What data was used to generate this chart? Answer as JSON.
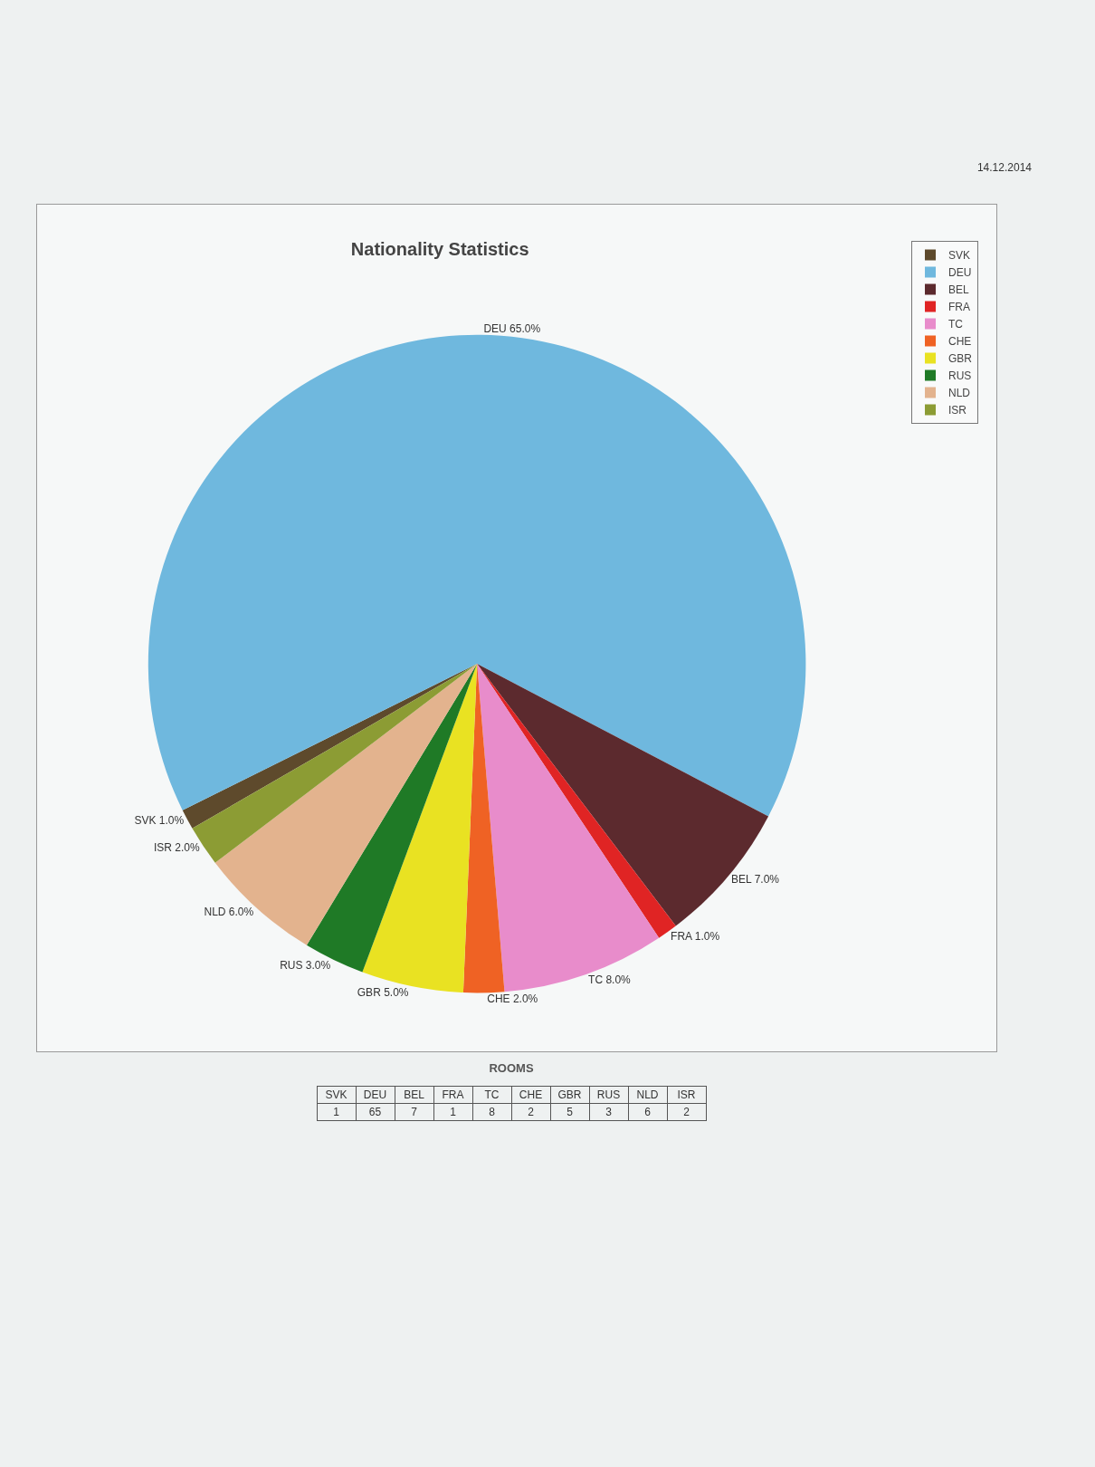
{
  "chart_data": [
    {
      "type": "pie",
      "title": "Nationality Statistics",
      "categories": [
        "SVK",
        "DEU",
        "BEL",
        "FRA",
        "TC",
        "CHE",
        "GBR",
        "RUS",
        "NLD",
        "ISR"
      ],
      "values": [
        1,
        65,
        7,
        1,
        8,
        2,
        5,
        3,
        6,
        2
      ],
      "colors": [
        "#5e4a2c",
        "#6fb8de",
        "#5c2a2e",
        "#e02424",
        "#e88ccb",
        "#ef6224",
        "#e9e222",
        "#1f7a26",
        "#e3b38e",
        "#8c9c34"
      ],
      "value_labels": [
        "SVK 1.0%",
        "DEU 65.0%",
        "BEL 7.0%",
        "FRA 1.0%",
        "TC 8.0%",
        "CHE 2.0%",
        "GBR 5.0%",
        "RUS 3.0%",
        "NLD 6.0%",
        "ISR 2.0%"
      ],
      "legend": "right",
      "annotations": [
        "14.12.2014"
      ]
    },
    {
      "type": "other",
      "title": "ROOMS",
      "categories": [
        "SVK",
        "DEU",
        "BEL",
        "FRA",
        "TC",
        "CHE",
        "GBR",
        "RUS",
        "NLD",
        "ISR"
      ],
      "values": [
        1,
        65,
        7,
        1,
        8,
        2,
        5,
        3,
        6,
        2
      ],
      "data_labels": true
    }
  ]
}
